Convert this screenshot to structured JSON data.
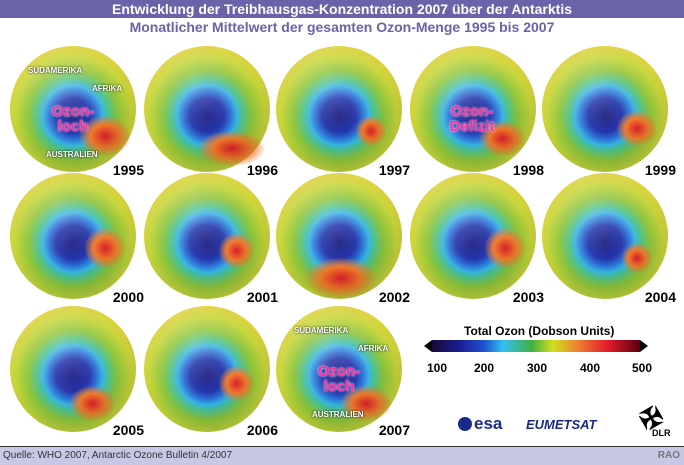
{
  "header": {
    "title": "Entwicklung der Treibhausgas-Konzentration 2007 über der Antarktis",
    "subtitle": "Monatlicher Mittelwert der gesamten Ozon-Menge 1995 bis 2007"
  },
  "globes": [
    {
      "year": "1995"
    },
    {
      "year": "1996"
    },
    {
      "year": "1997"
    },
    {
      "year": "1998"
    },
    {
      "year": "1999"
    },
    {
      "year": "2000"
    },
    {
      "year": "2001"
    },
    {
      "year": "2002"
    },
    {
      "year": "2003"
    },
    {
      "year": "2004"
    },
    {
      "year": "2005"
    },
    {
      "year": "2006"
    },
    {
      "year": "2007"
    }
  ],
  "annotations": {
    "suedamerika": "SÜDAMERIKA",
    "afrika": "AFRIKA",
    "australien": "AUSTRALIEN",
    "ozonloch": "Ozon-loch",
    "ozondefizit": "Ozon-Defizit"
  },
  "colorbar": {
    "title": "Total Ozon (Dobson Units)",
    "ticks": [
      "100",
      "200",
      "300",
      "400",
      "500"
    ],
    "min": 100,
    "max": 500
  },
  "logos": {
    "esa": "esa",
    "eumetsat": "EUMETSAT",
    "dlr": "DLR"
  },
  "footer": {
    "source": "Quelle: WHO 2007, Antarctic Ozone Bulletin 4/2007",
    "credit": "RAO"
  }
}
